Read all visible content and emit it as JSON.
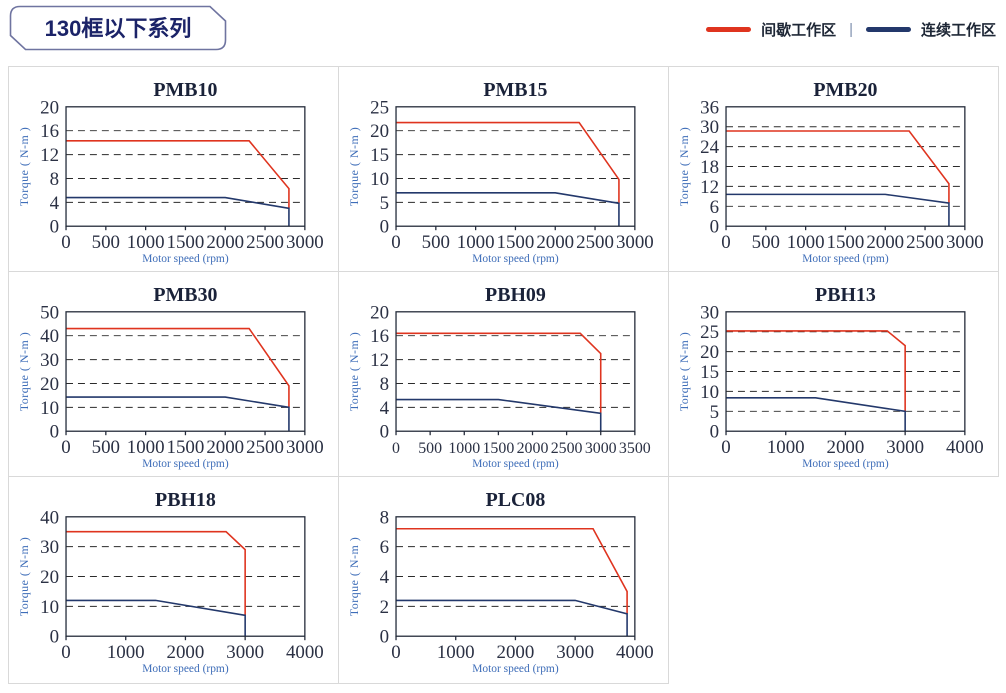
{
  "header": {
    "title": "130框以下系列"
  },
  "legend": {
    "intermittent_label": "间歇工作区",
    "separator": "|",
    "continuous_label": "连续工作区",
    "intermittent_color": "#df341f",
    "continuous_color": "#23386b"
  },
  "chart_data": [
    {
      "type": "line",
      "title": "PMB10",
      "xlabel": "Motor speed (rpm)",
      "ylabel": "Torque ( N-m )",
      "xlim": [
        0,
        3000
      ],
      "xticks": [
        0,
        500,
        1000,
        1500,
        2000,
        2500,
        3000
      ],
      "ylim": [
        0,
        20
      ],
      "yticks": [
        0,
        4,
        8,
        12,
        16,
        20
      ],
      "grid": "dashed-horizontal",
      "legend_position": "none",
      "series": [
        {
          "name": "间歇工作区",
          "color": "#df341f",
          "points": [
            [
              0,
              14.3
            ],
            [
              2300,
              14.3
            ],
            [
              2800,
              6.3
            ],
            [
              2800,
              3
            ]
          ]
        },
        {
          "name": "连续工作区",
          "color": "#23386b",
          "points": [
            [
              0,
              4.8
            ],
            [
              2000,
              4.8
            ],
            [
              2800,
              3
            ],
            [
              2800,
              0
            ]
          ]
        }
      ]
    },
    {
      "type": "line",
      "title": "PMB15",
      "xlabel": "Motor speed (rpm)",
      "ylabel": "Torque ( N-m )",
      "xlim": [
        0,
        3000
      ],
      "xticks": [
        0,
        500,
        1000,
        1500,
        2000,
        2500,
        3000
      ],
      "ylim": [
        0,
        25
      ],
      "yticks": [
        0,
        5,
        10,
        15,
        20,
        25
      ],
      "grid": "dashed-horizontal",
      "legend_position": "none",
      "series": [
        {
          "name": "间歇工作区",
          "color": "#df341f",
          "points": [
            [
              0,
              21.7
            ],
            [
              2300,
              21.7
            ],
            [
              2800,
              9.8
            ],
            [
              2800,
              4.8
            ]
          ]
        },
        {
          "name": "连续工作区",
          "color": "#23386b",
          "points": [
            [
              0,
              7
            ],
            [
              2000,
              7
            ],
            [
              2800,
              4.8
            ],
            [
              2800,
              0
            ]
          ]
        }
      ]
    },
    {
      "type": "line",
      "title": "PMB20",
      "xlabel": "Motor speed (rpm)",
      "ylabel": "Torque ( N-m )",
      "xlim": [
        0,
        3000
      ],
      "xticks": [
        0,
        500,
        1000,
        1500,
        2000,
        2500,
        3000
      ],
      "ylim": [
        0,
        36
      ],
      "yticks": [
        0,
        6,
        12,
        18,
        24,
        30,
        36
      ],
      "grid": "dashed-horizontal",
      "legend_position": "none",
      "series": [
        {
          "name": "间歇工作区",
          "color": "#df341f",
          "points": [
            [
              0,
              28.7
            ],
            [
              2300,
              28.7
            ],
            [
              2800,
              12.8
            ],
            [
              2800,
              7
            ]
          ]
        },
        {
          "name": "连续工作区",
          "color": "#23386b",
          "points": [
            [
              0,
              9.6
            ],
            [
              2000,
              9.6
            ],
            [
              2800,
              7
            ],
            [
              2800,
              0
            ]
          ]
        }
      ]
    },
    {
      "type": "line",
      "title": "PMB30",
      "xlabel": "Motor speed (rpm)",
      "ylabel": "Torque ( N-m )",
      "xlim": [
        0,
        3000
      ],
      "xticks": [
        0,
        500,
        1000,
        1500,
        2000,
        2500,
        3000
      ],
      "ylim": [
        0,
        50
      ],
      "yticks": [
        0,
        10,
        20,
        30,
        40,
        50
      ],
      "grid": "dashed-horizontal",
      "legend_position": "none",
      "series": [
        {
          "name": "间歇工作区",
          "color": "#df341f",
          "points": [
            [
              0,
              43
            ],
            [
              2300,
              43
            ],
            [
              2800,
              19
            ],
            [
              2800,
              10
            ]
          ]
        },
        {
          "name": "连续工作区",
          "color": "#23386b",
          "points": [
            [
              0,
              14.3
            ],
            [
              2000,
              14.3
            ],
            [
              2800,
              10
            ],
            [
              2800,
              0
            ]
          ]
        }
      ]
    },
    {
      "type": "line",
      "title": "PBH09",
      "xlabel": "Motor speed (rpm)",
      "ylabel": "Torque ( N-m )",
      "xlim": [
        0,
        3500
      ],
      "xticks": [
        0,
        500,
        1000,
        1500,
        2000,
        2500,
        3000,
        3500
      ],
      "ylim": [
        0,
        20
      ],
      "yticks": [
        0,
        4,
        8,
        12,
        16,
        20
      ],
      "grid": "dashed-horizontal",
      "legend_position": "none",
      "series": [
        {
          "name": "间歇工作区",
          "color": "#df341f",
          "points": [
            [
              0,
              16.4
            ],
            [
              2700,
              16.4
            ],
            [
              3000,
              13
            ],
            [
              3000,
              3
            ]
          ]
        },
        {
          "name": "连续工作区",
          "color": "#23386b",
          "points": [
            [
              0,
              5.3
            ],
            [
              1500,
              5.3
            ],
            [
              3000,
              3
            ],
            [
              3000,
              0
            ]
          ]
        }
      ]
    },
    {
      "type": "line",
      "title": "PBH13",
      "xlabel": "Motor speed (rpm)",
      "ylabel": "Torque ( N-m )",
      "xlim": [
        0,
        4000
      ],
      "xticks": [
        0,
        1000,
        2000,
        3000,
        4000
      ],
      "ylim": [
        0,
        30
      ],
      "yticks": [
        0,
        5,
        10,
        15,
        20,
        25,
        30
      ],
      "grid": "dashed-horizontal",
      "legend_position": "none",
      "series": [
        {
          "name": "间歇工作区",
          "color": "#df341f",
          "points": [
            [
              0,
              25.2
            ],
            [
              2700,
              25.2
            ],
            [
              3000,
              21.5
            ],
            [
              3000,
              5
            ]
          ]
        },
        {
          "name": "连续工作区",
          "color": "#23386b",
          "points": [
            [
              0,
              8.4
            ],
            [
              1500,
              8.4
            ],
            [
              3000,
              5
            ],
            [
              3000,
              0
            ]
          ]
        }
      ]
    },
    {
      "type": "line",
      "title": "PBH18",
      "xlabel": "Motor speed (rpm)",
      "ylabel": "Torque ( N-m )",
      "xlim": [
        0,
        4000
      ],
      "xticks": [
        0,
        1000,
        2000,
        3000,
        4000
      ],
      "ylim": [
        0,
        40
      ],
      "yticks": [
        0,
        10,
        20,
        30,
        40
      ],
      "grid": "dashed-horizontal",
      "legend_position": "none",
      "series": [
        {
          "name": "间歇工作区",
          "color": "#df341f",
          "points": [
            [
              0,
              35
            ],
            [
              2680,
              35
            ],
            [
              3000,
              29
            ],
            [
              3000,
              7
            ]
          ]
        },
        {
          "name": "连续工作区",
          "color": "#23386b",
          "points": [
            [
              0,
              12
            ],
            [
              1500,
              12
            ],
            [
              3000,
              7
            ],
            [
              3000,
              0
            ]
          ]
        }
      ]
    },
    {
      "type": "line",
      "title": "PLC08",
      "xlabel": "Motor speed (rpm)",
      "ylabel": "Torque ( N-m )",
      "xlim": [
        0,
        4000
      ],
      "xticks": [
        0,
        1000,
        2000,
        3000,
        4000
      ],
      "ylim": [
        0,
        8
      ],
      "yticks": [
        0,
        2,
        4,
        6,
        8
      ],
      "grid": "dashed-horizontal",
      "legend_position": "none",
      "series": [
        {
          "name": "间歇工作区",
          "color": "#df341f",
          "points": [
            [
              0,
              7.2
            ],
            [
              3300,
              7.2
            ],
            [
              3870,
              3
            ],
            [
              3870,
              1.5
            ]
          ]
        },
        {
          "name": "连续工作区",
          "color": "#23386b",
          "points": [
            [
              0,
              2.4
            ],
            [
              3000,
              2.4
            ],
            [
              3870,
              1.5
            ],
            [
              3870,
              0
            ]
          ]
        }
      ]
    }
  ],
  "style": {
    "title_color": "#1a2239",
    "tick_color": "#2b3144",
    "axis_label_color": "#3e6db8",
    "frame_color": "#242b3a",
    "grid_color": "#2b2b2b",
    "badge_text_color": "#1b2368",
    "badge_border_color": "#6f74a0",
    "cell_border_color": "#d9d9d9"
  }
}
